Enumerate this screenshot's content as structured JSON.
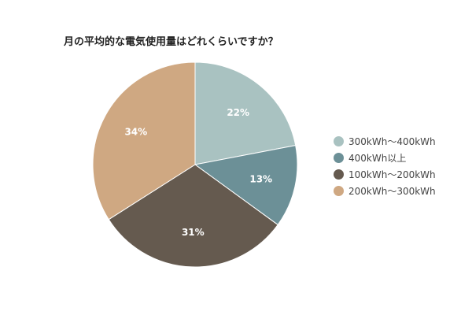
{
  "chart_data": {
    "type": "pie",
    "title": "月の平均的な電気使用量はどれくらいですか？",
    "slices": [
      {
        "label": "300kWh〜400kWh",
        "value": 22,
        "display": "22%",
        "color": "#a9c2c1"
      },
      {
        "label": "400kWh以上",
        "value": 13,
        "display": "13%",
        "color": "#6c9097"
      },
      {
        "label": "100kWh〜200kWh",
        "value": 31,
        "display": "31%",
        "color": "#655a4f"
      },
      {
        "label": "200kWh〜300kWh",
        "value": 34,
        "display": "34%",
        "color": "#cfa882"
      }
    ],
    "legend_position": "right"
  }
}
